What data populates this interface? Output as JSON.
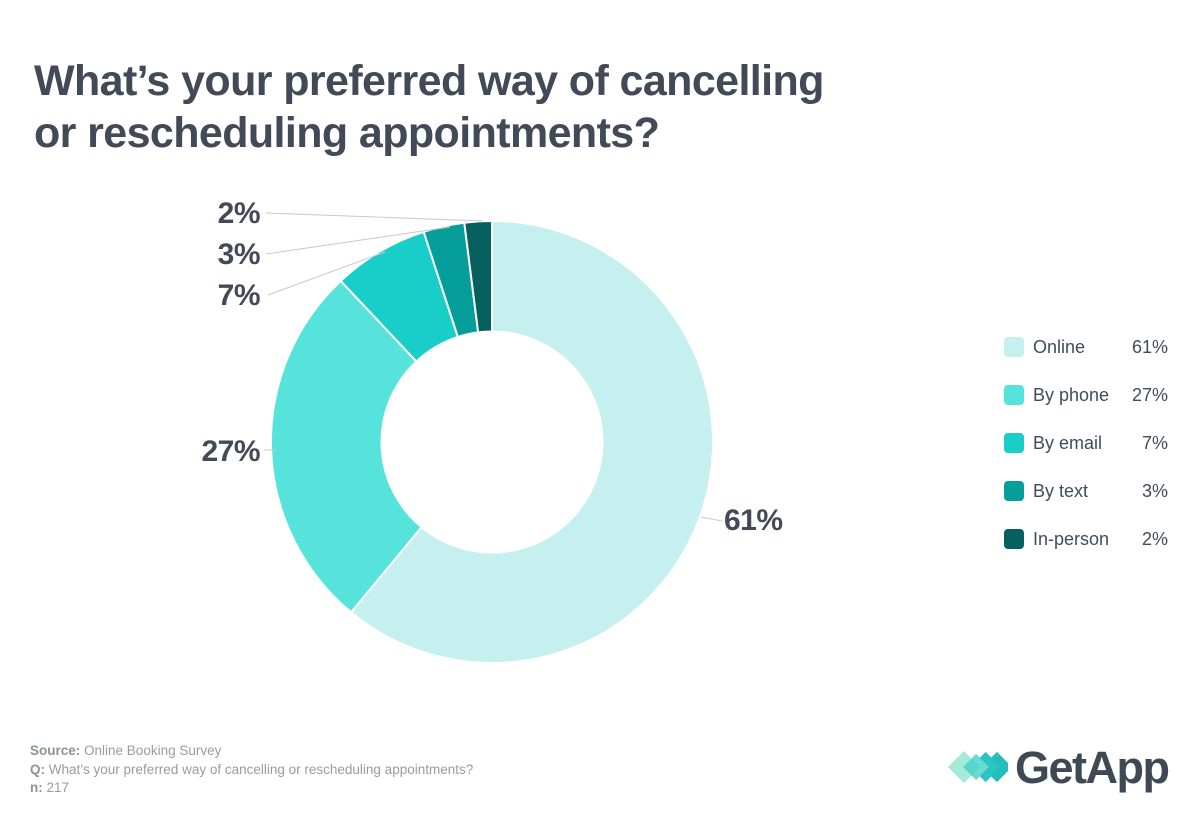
{
  "page_title_lines": [
    "What’s your preferred way of cancelling",
    "or rescheduling appointments?"
  ],
  "chart_data": {
    "type": "pie",
    "subtype": "donut",
    "title": "What’s your preferred way of cancelling or rescheduling appointments?",
    "categories": [
      "Online",
      "By phone",
      "By email",
      "By text",
      "In-person"
    ],
    "values": [
      61,
      27,
      7,
      3,
      2
    ],
    "unit": "%",
    "colors": [
      "#c6f0ef",
      "#55e3db",
      "#19cec8",
      "#069e9b",
      "#07605d"
    ],
    "pct_labels": [
      "61%",
      "27%",
      "7%",
      "3%",
      "2%"
    ],
    "legend": [
      {
        "label": "Online",
        "value": "61%"
      },
      {
        "label": "By phone",
        "value": "27%"
      },
      {
        "label": "By email",
        "value": "7%"
      },
      {
        "label": "By text",
        "value": "3%"
      },
      {
        "label": "In-person",
        "value": "2%"
      }
    ],
    "start_angle_deg": 0,
    "direction": "clockwise",
    "inner_radius_ratio": 0.5,
    "legend_position": "right",
    "text_color": "#414a56",
    "leader_line_color": "#c9c9c9"
  },
  "footer": {
    "source_label": "Source:",
    "source_value": "Online Booking Survey",
    "q_label": "Q:",
    "q_value": "What’s your preferred way of cancelling or rescheduling appointments?",
    "n_label": "n:",
    "n_value": "217",
    "brand_name": "GetApp"
  }
}
